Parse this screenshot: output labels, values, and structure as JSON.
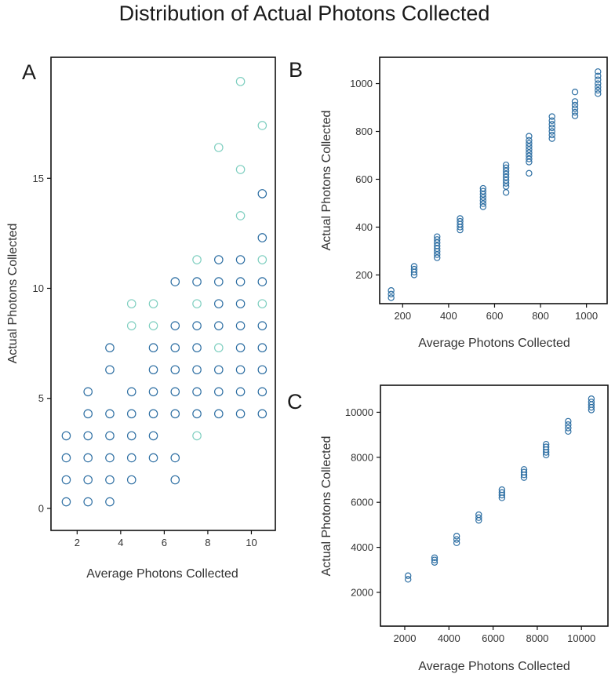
{
  "figure": {
    "title": "Distribution of Actual Photons Collected"
  },
  "colors": {
    "dark_marker": "#2e6fa3",
    "light_marker": "#7fcfc0",
    "frame": "#111111",
    "text": "#222222"
  },
  "chart_data": [
    {
      "panel": "A",
      "type": "scatter",
      "xlabel": "Average Photons Collected",
      "ylabel": "Actual Photons Collected",
      "xlim": [
        0.8,
        11.1
      ],
      "ylim": [
        -1,
        20.5
      ],
      "xticks": [
        2,
        4,
        6,
        8,
        10
      ],
      "yticks": [
        0,
        5,
        10,
        15
      ],
      "grid": false,
      "marker": "open-circle",
      "series": [
        {
          "color_role": "dark",
          "points": [
            [
              1.5,
              0.3
            ],
            [
              1.5,
              1.3
            ],
            [
              1.5,
              2.3
            ],
            [
              1.5,
              3.3
            ],
            [
              2.5,
              0.3
            ],
            [
              2.5,
              1.3
            ],
            [
              2.5,
              2.3
            ],
            [
              2.5,
              3.3
            ],
            [
              2.5,
              4.3
            ],
            [
              2.5,
              5.3
            ],
            [
              3.5,
              0.3
            ],
            [
              3.5,
              1.3
            ],
            [
              3.5,
              2.3
            ],
            [
              3.5,
              3.3
            ],
            [
              3.5,
              4.3
            ],
            [
              3.5,
              6.3
            ],
            [
              3.5,
              7.3
            ],
            [
              4.5,
              1.3
            ],
            [
              4.5,
              2.3
            ],
            [
              4.5,
              3.3
            ],
            [
              4.5,
              4.3
            ],
            [
              4.5,
              5.3
            ],
            [
              5.5,
              2.3
            ],
            [
              5.5,
              3.3
            ],
            [
              5.5,
              4.3
            ],
            [
              5.5,
              5.3
            ],
            [
              5.5,
              6.3
            ],
            [
              5.5,
              7.3
            ],
            [
              6.5,
              1.3
            ],
            [
              6.5,
              2.3
            ],
            [
              6.5,
              4.3
            ],
            [
              6.5,
              5.3
            ],
            [
              6.5,
              6.3
            ],
            [
              6.5,
              7.3
            ],
            [
              6.5,
              8.3
            ],
            [
              6.5,
              10.3
            ],
            [
              7.5,
              4.3
            ],
            [
              7.5,
              5.3
            ],
            [
              7.5,
              6.3
            ],
            [
              7.5,
              7.3
            ],
            [
              7.5,
              8.3
            ],
            [
              7.5,
              10.3
            ],
            [
              8.5,
              4.3
            ],
            [
              8.5,
              5.3
            ],
            [
              8.5,
              6.3
            ],
            [
              8.5,
              8.3
            ],
            [
              8.5,
              9.3
            ],
            [
              8.5,
              10.3
            ],
            [
              8.5,
              11.3
            ],
            [
              9.5,
              4.3
            ],
            [
              9.5,
              5.3
            ],
            [
              9.5,
              6.3
            ],
            [
              9.5,
              7.3
            ],
            [
              9.5,
              8.3
            ],
            [
              9.5,
              9.3
            ],
            [
              9.5,
              10.3
            ],
            [
              9.5,
              11.3
            ],
            [
              10.5,
              4.3
            ],
            [
              10.5,
              5.3
            ],
            [
              10.5,
              6.3
            ],
            [
              10.5,
              7.3
            ],
            [
              10.5,
              8.3
            ],
            [
              10.5,
              10.3
            ],
            [
              10.5,
              12.3
            ],
            [
              10.5,
              14.3
            ]
          ]
        },
        {
          "color_role": "light",
          "points": [
            [
              4.5,
              8.3
            ],
            [
              4.5,
              9.3
            ],
            [
              5.5,
              8.3
            ],
            [
              5.5,
              9.3
            ],
            [
              7.5,
              3.3
            ],
            [
              7.5,
              9.3
            ],
            [
              7.5,
              11.3
            ],
            [
              8.5,
              7.3
            ],
            [
              8.5,
              16.4
            ],
            [
              9.5,
              13.3
            ],
            [
              9.5,
              15.4
            ],
            [
              9.5,
              19.4
            ],
            [
              10.5,
              9.3
            ],
            [
              10.5,
              11.3
            ],
            [
              10.5,
              17.4
            ]
          ]
        }
      ]
    },
    {
      "panel": "B",
      "type": "scatter",
      "xlabel": "Average Photons Collected",
      "ylabel": "Actual Photons Collected",
      "xlim": [
        100,
        1090
      ],
      "ylim": [
        80,
        1110
      ],
      "xticks": [
        200,
        400,
        600,
        800,
        1000
      ],
      "yticks": [
        200,
        400,
        600,
        800,
        1000
      ],
      "grid": false,
      "marker": "open-circle",
      "series": [
        {
          "color_role": "dark",
          "points": [
            [
              150,
              105
            ],
            [
              150,
              120
            ],
            [
              150,
              135
            ],
            [
              250,
              200
            ],
            [
              250,
              212
            ],
            [
              250,
              224
            ],
            [
              250,
              236
            ],
            [
              350,
              272
            ],
            [
              350,
              285
            ],
            [
              350,
              298
            ],
            [
              350,
              310
            ],
            [
              350,
              322
            ],
            [
              350,
              335
            ],
            [
              350,
              348
            ],
            [
              350,
              360
            ],
            [
              450,
              388
            ],
            [
              450,
              400
            ],
            [
              450,
              412
            ],
            [
              450,
              424
            ],
            [
              450,
              436
            ],
            [
              550,
              485
            ],
            [
              550,
              498
            ],
            [
              550,
              511
            ],
            [
              550,
              524
            ],
            [
              550,
              537
            ],
            [
              550,
              550
            ],
            [
              550,
              562
            ],
            [
              650,
              545
            ],
            [
              650,
              570
            ],
            [
              650,
              583
            ],
            [
              650,
              596
            ],
            [
              650,
              609
            ],
            [
              650,
              622
            ],
            [
              650,
              635
            ],
            [
              650,
              648
            ],
            [
              650,
              660
            ],
            [
              750,
              625
            ],
            [
              750,
              672
            ],
            [
              750,
              685
            ],
            [
              750,
              698
            ],
            [
              750,
              711
            ],
            [
              750,
              724
            ],
            [
              750,
              737
            ],
            [
              750,
              750
            ],
            [
              750,
              763
            ],
            [
              750,
              780
            ],
            [
              850,
              770
            ],
            [
              850,
              785
            ],
            [
              850,
              800
            ],
            [
              850,
              815
            ],
            [
              850,
              830
            ],
            [
              850,
              845
            ],
            [
              850,
              862
            ],
            [
              950,
              865
            ],
            [
              950,
              880
            ],
            [
              950,
              895
            ],
            [
              950,
              910
            ],
            [
              950,
              925
            ],
            [
              950,
              965
            ],
            [
              1050,
              958
            ],
            [
              1050,
              972
            ],
            [
              1050,
              986
            ],
            [
              1050,
              1000
            ],
            [
              1050,
              1016
            ],
            [
              1050,
              1032
            ],
            [
              1050,
              1050
            ]
          ]
        }
      ]
    },
    {
      "panel": "C",
      "type": "scatter",
      "xlabel": "Average Photons Collected",
      "ylabel": "Actual Photons Collected",
      "xlim": [
        900,
        11200
      ],
      "ylim": [
        500,
        11200
      ],
      "xticks": [
        2000,
        4000,
        6000,
        8000,
        10000
      ],
      "yticks": [
        2000,
        4000,
        6000,
        8000,
        10000
      ],
      "grid": false,
      "marker": "open-circle",
      "series": [
        {
          "color_role": "dark",
          "points": [
            [
              2150,
              2580
            ],
            [
              2150,
              2740
            ],
            [
              3350,
              3330
            ],
            [
              3350,
              3440
            ],
            [
              3350,
              3540
            ],
            [
              4350,
              4200
            ],
            [
              4350,
              4350
            ],
            [
              4350,
              4500
            ],
            [
              5350,
              5200
            ],
            [
              5350,
              5320
            ],
            [
              5350,
              5450
            ],
            [
              6400,
              6200
            ],
            [
              6400,
              6320
            ],
            [
              6400,
              6440
            ],
            [
              6400,
              6560
            ],
            [
              7400,
              7100
            ],
            [
              7400,
              7220
            ],
            [
              7400,
              7340
            ],
            [
              7400,
              7460
            ],
            [
              8400,
              8100
            ],
            [
              8400,
              8220
            ],
            [
              8400,
              8340
            ],
            [
              8400,
              8460
            ],
            [
              8400,
              8580
            ],
            [
              9400,
              9150
            ],
            [
              9400,
              9300
            ],
            [
              9400,
              9450
            ],
            [
              9400,
              9600
            ],
            [
              10450,
              10100
            ],
            [
              10450,
              10220
            ],
            [
              10450,
              10340
            ],
            [
              10450,
              10460
            ],
            [
              10450,
              10600
            ]
          ]
        }
      ]
    }
  ]
}
